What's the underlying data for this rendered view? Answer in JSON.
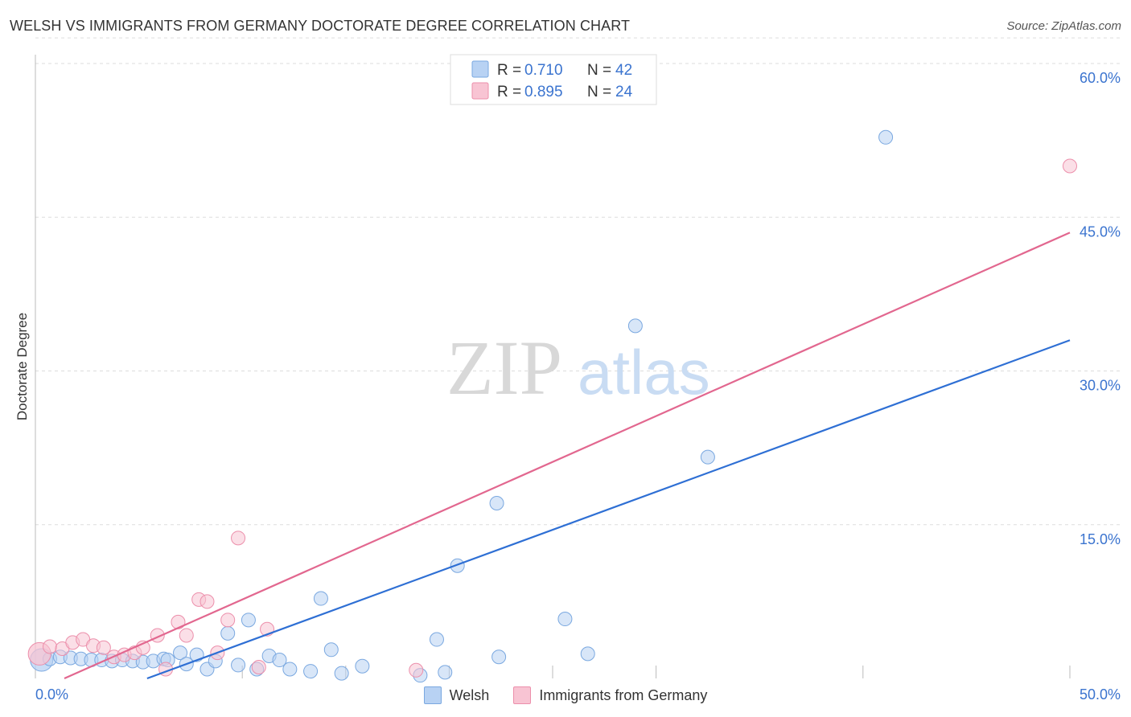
{
  "title": "WELSH VS IMMIGRANTS FROM GERMANY DOCTORATE DEGREE CORRELATION CHART",
  "source": "Source: ZipAtlas.com",
  "watermark": {
    "zip": "ZIP",
    "atlas": "atlas"
  },
  "legend": {
    "rows": [
      {
        "r_label": "R = ",
        "r_value": "0.710",
        "n_label": "N = ",
        "n_value": "42"
      },
      {
        "r_label": "R = ",
        "r_value": "0.895",
        "n_label": "N = ",
        "n_value": "24"
      }
    ]
  },
  "colors": {
    "welsh_fill": "#b8d2f3",
    "welsh_stroke": "#7aa8e0",
    "welsh_line": "#2e6fd4",
    "germany_fill": "#f8c4d3",
    "germany_stroke": "#ec8fab",
    "germany_line": "#e2678f",
    "value_text": "#3b74cf",
    "grid": "#dddddd"
  },
  "chart_data": {
    "type": "scatter",
    "title": "WELSH VS IMMIGRANTS FROM GERMANY DOCTORATE DEGREE CORRELATION CHART",
    "xlabel": "",
    "ylabel": "Doctorate Degree",
    "xlim": [
      0,
      50
    ],
    "ylim": [
      0,
      60
    ],
    "x_tick_labels": [
      "0.0%",
      "50.0%"
    ],
    "y_ticks": [
      15,
      30,
      45,
      60
    ],
    "y_tick_labels": [
      "15.0%",
      "30.0%",
      "45.0%",
      "60.0%"
    ],
    "series": [
      {
        "name": "Welsh",
        "r": 0.71,
        "n": 42,
        "trendline": {
          "x": [
            5.4,
            50.0
          ],
          "y": [
            0.0,
            33.0
          ]
        },
        "points": [
          {
            "x": 0.3,
            "y": 1.8,
            "big": true
          },
          {
            "x": 0.7,
            "y": 1.9
          },
          {
            "x": 1.2,
            "y": 2.1
          },
          {
            "x": 1.7,
            "y": 2.0
          },
          {
            "x": 2.2,
            "y": 1.9
          },
          {
            "x": 2.7,
            "y": 1.8
          },
          {
            "x": 3.2,
            "y": 1.8
          },
          {
            "x": 3.7,
            "y": 1.7
          },
          {
            "x": 4.2,
            "y": 1.8
          },
          {
            "x": 4.7,
            "y": 1.7
          },
          {
            "x": 5.2,
            "y": 1.6
          },
          {
            "x": 5.7,
            "y": 1.7
          },
          {
            "x": 6.2,
            "y": 1.9
          },
          {
            "x": 6.4,
            "y": 1.8
          },
          {
            "x": 7.0,
            "y": 2.5
          },
          {
            "x": 7.3,
            "y": 1.4
          },
          {
            "x": 7.8,
            "y": 2.3
          },
          {
            "x": 8.3,
            "y": 0.9
          },
          {
            "x": 8.7,
            "y": 1.7
          },
          {
            "x": 9.3,
            "y": 4.4
          },
          {
            "x": 9.8,
            "y": 1.3
          },
          {
            "x": 10.3,
            "y": 5.7
          },
          {
            "x": 10.7,
            "y": 0.9
          },
          {
            "x": 11.3,
            "y": 2.2
          },
          {
            "x": 11.8,
            "y": 1.8
          },
          {
            "x": 12.3,
            "y": 0.9
          },
          {
            "x": 13.3,
            "y": 0.7
          },
          {
            "x": 13.8,
            "y": 7.8
          },
          {
            "x": 14.3,
            "y": 2.8
          },
          {
            "x": 14.8,
            "y": 0.5
          },
          {
            "x": 15.8,
            "y": 1.2
          },
          {
            "x": 18.6,
            "y": 0.3
          },
          {
            "x": 19.4,
            "y": 3.8
          },
          {
            "x": 19.8,
            "y": 0.6
          },
          {
            "x": 20.4,
            "y": 11.0
          },
          {
            "x": 22.3,
            "y": 17.1
          },
          {
            "x": 22.4,
            "y": 2.1
          },
          {
            "x": 25.6,
            "y": 5.8
          },
          {
            "x": 26.7,
            "y": 2.4
          },
          {
            "x": 29.0,
            "y": 34.4
          },
          {
            "x": 32.5,
            "y": 21.6
          },
          {
            "x": 41.1,
            "y": 52.8
          }
        ]
      },
      {
        "name": "Immigrants from Germany",
        "r": 0.895,
        "n": 24,
        "trendline": {
          "x": [
            1.4,
            50.0
          ],
          "y": [
            0.0,
            43.5
          ]
        },
        "points": [
          {
            "x": 0.2,
            "y": 2.4,
            "big": true
          },
          {
            "x": 0.7,
            "y": 3.1
          },
          {
            "x": 1.3,
            "y": 2.9
          },
          {
            "x": 1.8,
            "y": 3.5
          },
          {
            "x": 2.3,
            "y": 3.8
          },
          {
            "x": 2.8,
            "y": 3.2
          },
          {
            "x": 3.3,
            "y": 3.0
          },
          {
            "x": 3.8,
            "y": 2.1
          },
          {
            "x": 4.3,
            "y": 2.3
          },
          {
            "x": 4.8,
            "y": 2.5
          },
          {
            "x": 5.2,
            "y": 3.0
          },
          {
            "x": 5.9,
            "y": 4.2
          },
          {
            "x": 6.3,
            "y": 0.9
          },
          {
            "x": 6.9,
            "y": 5.5
          },
          {
            "x": 7.3,
            "y": 4.2
          },
          {
            "x": 7.9,
            "y": 7.7
          },
          {
            "x": 8.3,
            "y": 7.5
          },
          {
            "x": 8.8,
            "y": 2.5
          },
          {
            "x": 9.3,
            "y": 5.7
          },
          {
            "x": 9.8,
            "y": 13.7
          },
          {
            "x": 10.8,
            "y": 1.1
          },
          {
            "x": 11.2,
            "y": 4.8
          },
          {
            "x": 18.4,
            "y": 0.8
          },
          {
            "x": 50.0,
            "y": 50.0
          }
        ]
      }
    ]
  }
}
